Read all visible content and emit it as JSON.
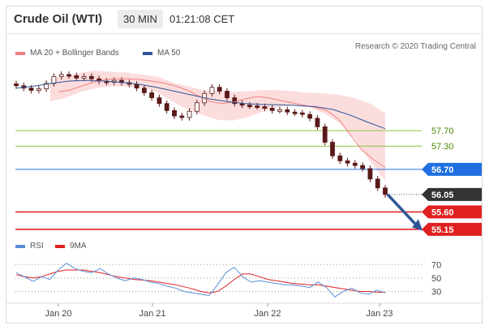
{
  "header": {
    "title": "Crude Oil (WTI)",
    "interval": "30 MIN",
    "time": "01:21:08 CET"
  },
  "legend": {
    "ma20_label": "MA 20 + Bollinger Bands",
    "ma50_label": "MA 50",
    "credit": "Research © 2020 Trading Central",
    "rsi_label": "RSI",
    "ma9_label": "9MA"
  },
  "colors": {
    "ma20": "#f08080",
    "band_fill": "#fbd5d5",
    "ma50": "#2f5597",
    "bull": "#ffffff",
    "bear": "#5a1a1a",
    "support": "#e02020",
    "resistance": "#8cc63f",
    "pivot": "#1f6fe0",
    "price_label": "#333333",
    "arrow": "#2f5597",
    "rsi": "#5a8fd8",
    "rsi_ma": "#e02020"
  },
  "chart_data": {
    "type": "candlestick",
    "x_ticks": [
      "Jan 20",
      "Jan 21",
      "Jan 22",
      "Jan 23"
    ],
    "y_range": [
      55.0,
      59.4
    ],
    "levels": [
      {
        "value": 57.7,
        "label": "57.70",
        "kind": "resistance"
      },
      {
        "value": 57.3,
        "label": "57.30",
        "kind": "resistance"
      },
      {
        "value": 56.7,
        "label": "56.70",
        "kind": "pivot"
      },
      {
        "value": 56.05,
        "label": "56.05",
        "kind": "last"
      },
      {
        "value": 55.6,
        "label": "55.60",
        "kind": "support"
      },
      {
        "value": 55.15,
        "label": "55.15",
        "kind": "support"
      }
    ],
    "price_series": [
      58.86,
      58.8,
      58.74,
      58.78,
      58.92,
      59.1,
      59.15,
      59.12,
      59.06,
      59.1,
      59.04,
      58.98,
      58.95,
      59.0,
      58.94,
      58.9,
      58.8,
      58.68,
      58.55,
      58.4,
      58.22,
      58.08,
      58.04,
      58.2,
      58.42,
      58.66,
      58.82,
      58.72,
      58.55,
      58.4,
      58.36,
      58.34,
      58.32,
      58.28,
      58.22,
      58.24,
      58.18,
      58.16,
      58.12,
      58.02,
      57.8,
      57.4,
      57.05,
      56.92,
      56.86,
      56.8,
      56.72,
      56.45,
      56.22,
      56.05
    ],
    "ma20_series": [
      58.7,
      58.75,
      58.85,
      58.95,
      59.02,
      59.04,
      59.04,
      59.02,
      58.98,
      58.93,
      58.86,
      58.75,
      58.6,
      58.45,
      58.4,
      58.44,
      58.52,
      58.58,
      58.55,
      58.48,
      58.42,
      58.36,
      58.3,
      58.22,
      58.0,
      57.6,
      57.2,
      56.95,
      56.75
    ],
    "ma50_series": [
      58.8,
      58.85,
      58.92,
      58.98,
      59.0,
      58.98,
      58.95,
      58.9,
      58.82,
      58.72,
      58.62,
      58.52,
      58.45,
      58.4,
      58.38,
      58.37,
      58.35,
      58.32,
      58.25,
      58.1,
      57.92,
      57.75
    ],
    "upper_band": [
      59.05,
      59.1,
      59.2,
      59.25,
      59.22,
      59.2,
      59.15,
      59.1,
      58.95,
      58.85,
      58.75,
      58.72,
      58.7,
      58.72,
      58.75,
      58.75,
      58.72,
      58.68,
      58.66,
      58.62,
      58.55,
      58.4,
      58.15
    ],
    "lower_band": [
      58.45,
      58.55,
      58.7,
      58.8,
      58.85,
      58.84,
      58.82,
      58.7,
      58.45,
      58.25,
      58.1,
      57.98,
      57.96,
      58.05,
      58.2,
      58.32,
      58.35,
      58.3,
      58.15,
      57.9,
      57.5,
      56.9,
      56.4
    ],
    "rsi": {
      "y_ticks": [
        70,
        50,
        30
      ],
      "y_range": [
        15,
        80
      ],
      "rsi_series": [
        58,
        52,
        45,
        52,
        48,
        62,
        72,
        64,
        60,
        58,
        64,
        56,
        50,
        46,
        50,
        48,
        44,
        42,
        38,
        35,
        30,
        28,
        26,
        24,
        40,
        58,
        66,
        52,
        44,
        46,
        44,
        42,
        40,
        40,
        38,
        36,
        44,
        36,
        22,
        30,
        35,
        28,
        26,
        32,
        28
      ],
      "ma_series": [
        55,
        52,
        50,
        52,
        56,
        60,
        62,
        62,
        62,
        60,
        58,
        55,
        52,
        50,
        48,
        47,
        46,
        44,
        42,
        40,
        37,
        34,
        30,
        28,
        30,
        38,
        48,
        56,
        56,
        52,
        48,
        46,
        44,
        42,
        41,
        40,
        40,
        38,
        36,
        34,
        32,
        30,
        30,
        29,
        29
      ]
    }
  }
}
